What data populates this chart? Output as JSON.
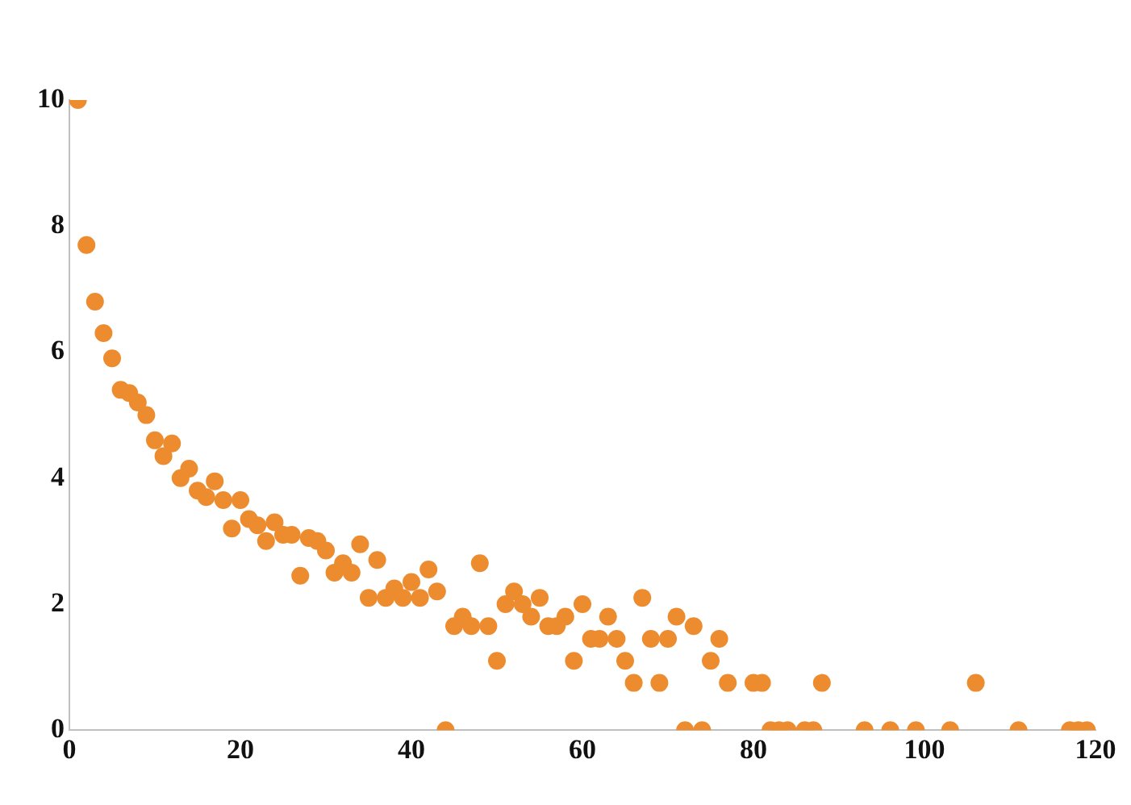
{
  "chart_data": {
    "type": "scatter",
    "xlim": [
      0,
      120
    ],
    "xticks": [
      0,
      20,
      40,
      60,
      80,
      100,
      120
    ],
    "ylim": [
      0,
      10
    ],
    "yticks": [
      0,
      2,
      4,
      6,
      8,
      10
    ],
    "grid": false,
    "legend": false,
    "marker": "circle",
    "series": [
      {
        "color": "#ed8b2f",
        "x": [
          1,
          2,
          3,
          4,
          5,
          6,
          7,
          8,
          9,
          10,
          11,
          12,
          13,
          14,
          15,
          16,
          17,
          18,
          19,
          20,
          21,
          22,
          23,
          24,
          25,
          26,
          27,
          28,
          29,
          30,
          31,
          32,
          33,
          34,
          35,
          36,
          37,
          38,
          39,
          40,
          41,
          42,
          43,
          44,
          45,
          46,
          47,
          48,
          49,
          50,
          51,
          52,
          53,
          54,
          55,
          56,
          57,
          58,
          59,
          60,
          61,
          62,
          63,
          64,
          65,
          66,
          67,
          68,
          69,
          70,
          71,
          72,
          73,
          74,
          75,
          76,
          77,
          80,
          81,
          82,
          83,
          84,
          86,
          87,
          88,
          93,
          96,
          99,
          103,
          106,
          111,
          117,
          118,
          119
        ],
        "values": [
          10,
          7.7,
          6.8,
          6.3,
          5.9,
          5.4,
          5.35,
          5.2,
          5.0,
          4.6,
          4.35,
          4.55,
          4.0,
          4.15,
          3.8,
          3.7,
          3.95,
          3.65,
          3.2,
          3.65,
          3.35,
          3.25,
          3.0,
          3.3,
          3.1,
          3.1,
          2.45,
          3.05,
          3.0,
          2.85,
          2.5,
          2.65,
          2.5,
          2.95,
          2.1,
          2.7,
          2.1,
          2.25,
          2.1,
          2.35,
          2.1,
          2.55,
          2.2,
          0,
          1.65,
          1.8,
          1.65,
          2.65,
          1.65,
          1.1,
          2.0,
          2.2,
          2.0,
          1.8,
          2.1,
          1.65,
          1.65,
          1.8,
          1.1,
          2.0,
          1.45,
          1.45,
          1.8,
          1.45,
          1.1,
          0.75,
          2.1,
          1.45,
          0.75,
          1.45,
          1.8,
          0,
          1.65,
          0,
          1.1,
          1.45,
          0.75,
          0.75,
          0.75,
          0,
          0,
          0,
          0,
          0,
          0.75,
          0,
          0,
          0,
          0,
          0.75,
          0,
          0,
          0,
          0
        ]
      }
    ]
  }
}
